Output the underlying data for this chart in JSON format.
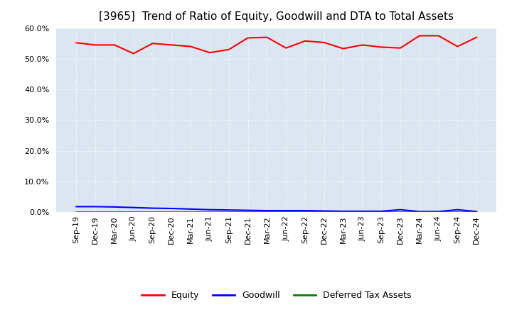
{
  "title": "[3965]  Trend of Ratio of Equity, Goodwill and DTA to Total Assets",
  "x_labels": [
    "Sep-19",
    "Dec-19",
    "Mar-20",
    "Jun-20",
    "Sep-20",
    "Dec-20",
    "Mar-21",
    "Jun-21",
    "Sep-21",
    "Dec-21",
    "Mar-22",
    "Jun-22",
    "Sep-22",
    "Dec-22",
    "Mar-23",
    "Jun-23",
    "Sep-23",
    "Dec-23",
    "Mar-24",
    "Jun-24",
    "Sep-24",
    "Dec-24"
  ],
  "equity": [
    55.2,
    54.5,
    54.5,
    51.7,
    55.0,
    54.5,
    54.0,
    52.0,
    53.0,
    56.8,
    57.0,
    53.5,
    55.8,
    55.3,
    53.3,
    54.5,
    53.8,
    53.5,
    57.5,
    57.5,
    54.0,
    57.0
  ],
  "goodwill": [
    1.8,
    1.8,
    1.7,
    1.5,
    1.3,
    1.2,
    1.0,
    0.8,
    0.7,
    0.6,
    0.5,
    0.5,
    0.5,
    0.4,
    0.3,
    0.3,
    0.3,
    0.8,
    0.2,
    0.2,
    0.8,
    0.2
  ],
  "dta": [
    0.05,
    0.05,
    0.05,
    0.05,
    0.05,
    0.05,
    0.05,
    0.05,
    0.05,
    0.05,
    0.05,
    0.05,
    0.05,
    0.05,
    0.05,
    0.05,
    0.05,
    0.05,
    0.05,
    0.05,
    0.05,
    0.05
  ],
  "equity_color": "#FF0000",
  "goodwill_color": "#0000FF",
  "dta_color": "#008000",
  "ylim": [
    0.0,
    60.0
  ],
  "yticks": [
    0.0,
    10.0,
    20.0,
    30.0,
    40.0,
    50.0,
    60.0
  ],
  "plot_bg_color": "#DCE6F1",
  "fig_bg_color": "#FFFFFF",
  "grid_color": "#FFFFFF",
  "title_fontsize": 11,
  "tick_fontsize": 8,
  "legend_labels": [
    "Equity",
    "Goodwill",
    "Deferred Tax Assets"
  ]
}
